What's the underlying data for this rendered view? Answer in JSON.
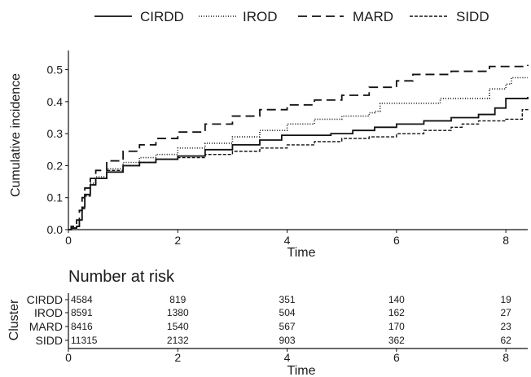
{
  "chart_data": {
    "type": "line",
    "step": true,
    "xlabel": "Time",
    "ylabel": "Cumulative incidence",
    "xlim": [
      0,
      8.4
    ],
    "ylim": [
      0,
      0.56
    ],
    "x_ticks": [
      "0",
      "2",
      "4",
      "6",
      "8"
    ],
    "y_ticks": [
      "0.0",
      "0.1",
      "0.2",
      "0.3",
      "0.4",
      "0.5"
    ],
    "grid": false,
    "legend_position": "top",
    "series": [
      {
        "name": "CIRDD",
        "style": "solid",
        "points": [
          [
            0,
            0
          ],
          [
            0.05,
            0.005
          ],
          [
            0.15,
            0.01
          ],
          [
            0.2,
            0.03
          ],
          [
            0.25,
            0.07
          ],
          [
            0.3,
            0.11
          ],
          [
            0.4,
            0.14
          ],
          [
            0.5,
            0.16
          ],
          [
            0.7,
            0.18
          ],
          [
            1.0,
            0.2
          ],
          [
            1.3,
            0.21
          ],
          [
            1.6,
            0.22
          ],
          [
            2.0,
            0.23
          ],
          [
            2.5,
            0.25
          ],
          [
            3.0,
            0.265
          ],
          [
            3.5,
            0.28
          ],
          [
            3.9,
            0.295
          ],
          [
            4.5,
            0.295
          ],
          [
            4.8,
            0.3
          ],
          [
            5.2,
            0.31
          ],
          [
            5.6,
            0.32
          ],
          [
            6.0,
            0.33
          ],
          [
            6.5,
            0.34
          ],
          [
            7.0,
            0.35
          ],
          [
            7.5,
            0.36
          ],
          [
            7.8,
            0.38
          ],
          [
            8.0,
            0.41
          ],
          [
            8.4,
            0.415
          ]
        ]
      },
      {
        "name": "IROD",
        "style": "dotted",
        "points": [
          [
            0,
            0
          ],
          [
            0.05,
            0.005
          ],
          [
            0.15,
            0.01
          ],
          [
            0.2,
            0.03
          ],
          [
            0.25,
            0.07
          ],
          [
            0.3,
            0.11
          ],
          [
            0.4,
            0.145
          ],
          [
            0.5,
            0.165
          ],
          [
            0.7,
            0.19
          ],
          [
            1.0,
            0.21
          ],
          [
            1.3,
            0.225
          ],
          [
            1.6,
            0.235
          ],
          [
            2.0,
            0.255
          ],
          [
            2.5,
            0.27
          ],
          [
            3.0,
            0.29
          ],
          [
            3.5,
            0.31
          ],
          [
            4.0,
            0.33
          ],
          [
            4.5,
            0.345
          ],
          [
            5.0,
            0.355
          ],
          [
            5.5,
            0.365
          ],
          [
            5.6,
            0.37
          ],
          [
            5.7,
            0.395
          ],
          [
            6.5,
            0.395
          ],
          [
            6.8,
            0.41
          ],
          [
            7.5,
            0.41
          ],
          [
            7.7,
            0.44
          ],
          [
            8.0,
            0.455
          ],
          [
            8.1,
            0.475
          ],
          [
            8.4,
            0.475
          ]
        ]
      },
      {
        "name": "MARD",
        "style": "longdash",
        "points": [
          [
            0,
            0
          ],
          [
            0.05,
            0.01
          ],
          [
            0.15,
            0.03
          ],
          [
            0.2,
            0.06
          ],
          [
            0.25,
            0.1
          ],
          [
            0.3,
            0.13
          ],
          [
            0.4,
            0.16
          ],
          [
            0.5,
            0.185
          ],
          [
            0.7,
            0.215
          ],
          [
            1.0,
            0.245
          ],
          [
            1.3,
            0.265
          ],
          [
            1.6,
            0.285
          ],
          [
            2.0,
            0.305
          ],
          [
            2.5,
            0.33
          ],
          [
            3.0,
            0.355
          ],
          [
            3.5,
            0.375
          ],
          [
            4.0,
            0.39
          ],
          [
            4.5,
            0.405
          ],
          [
            5.0,
            0.42
          ],
          [
            5.5,
            0.445
          ],
          [
            6.0,
            0.465
          ],
          [
            6.3,
            0.485
          ],
          [
            7.0,
            0.495
          ],
          [
            7.7,
            0.51
          ],
          [
            8.4,
            0.515
          ]
        ]
      },
      {
        "name": "SIDD",
        "style": "dashed",
        "points": [
          [
            0,
            0
          ],
          [
            0.05,
            0.005
          ],
          [
            0.15,
            0.01
          ],
          [
            0.2,
            0.03
          ],
          [
            0.25,
            0.065
          ],
          [
            0.3,
            0.105
          ],
          [
            0.4,
            0.14
          ],
          [
            0.5,
            0.16
          ],
          [
            0.7,
            0.185
          ],
          [
            1.0,
            0.2
          ],
          [
            1.3,
            0.21
          ],
          [
            1.6,
            0.22
          ],
          [
            2.0,
            0.225
          ],
          [
            2.5,
            0.235
          ],
          [
            3.0,
            0.245
          ],
          [
            3.5,
            0.255
          ],
          [
            4.0,
            0.265
          ],
          [
            4.5,
            0.275
          ],
          [
            5.0,
            0.285
          ],
          [
            5.5,
            0.29
          ],
          [
            6.0,
            0.3
          ],
          [
            6.5,
            0.31
          ],
          [
            7.0,
            0.32
          ],
          [
            7.2,
            0.33
          ],
          [
            7.5,
            0.34
          ],
          [
            8.0,
            0.345
          ],
          [
            8.3,
            0.375
          ],
          [
            8.4,
            0.38
          ]
        ]
      }
    ]
  },
  "risk_table": {
    "title": "Number at risk",
    "ylabel": "Cluster",
    "xlabel": "Time",
    "x_ticks": [
      "0",
      "2",
      "4",
      "6",
      "8"
    ],
    "time_points": [
      0,
      2,
      4,
      6,
      8
    ],
    "rows": [
      {
        "label": "CIRDD",
        "values": [
          "4584",
          "819",
          "351",
          "140",
          "19"
        ]
      },
      {
        "label": "IROD",
        "values": [
          "8591",
          "1380",
          "504",
          "162",
          "27"
        ]
      },
      {
        "label": "MARD",
        "values": [
          "8416",
          "1540",
          "567",
          "170",
          "23"
        ]
      },
      {
        "label": "SIDD",
        "values": [
          "11315",
          "2132",
          "903",
          "362",
          "62"
        ]
      }
    ]
  }
}
